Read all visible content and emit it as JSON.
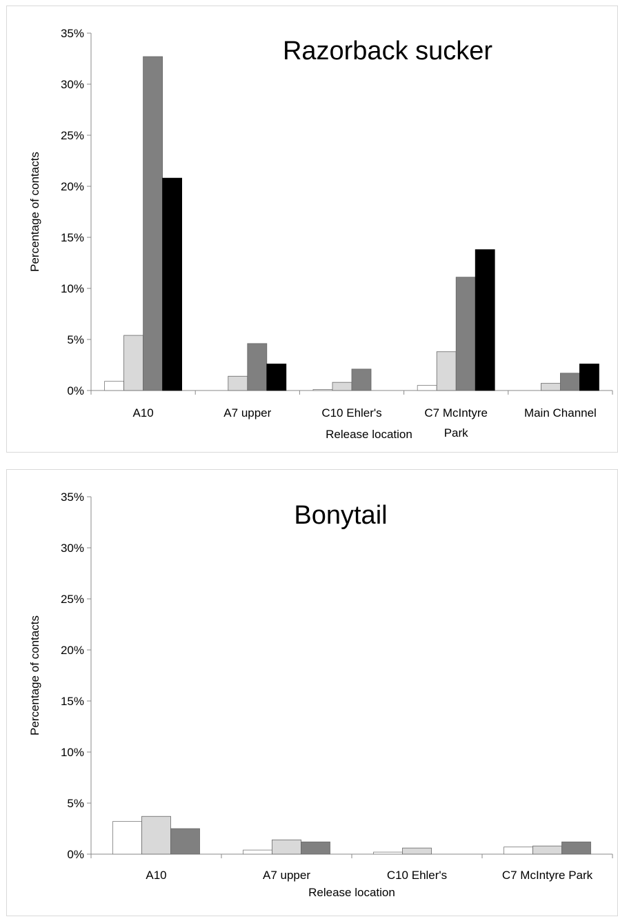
{
  "chart_data": [
    {
      "type": "bar",
      "title": "Razorback sucker",
      "xlabel": "Release location",
      "ylabel": "Percentage of contacts",
      "ylim": [
        0,
        35
      ],
      "yticks": [
        "0%",
        "5%",
        "10%",
        "15%",
        "20%",
        "25%",
        "30%",
        "35%"
      ],
      "categories": [
        "A10",
        "A7 upper",
        "C10 Ehler's",
        "C7 McIntyre Park",
        "Main Channel"
      ],
      "series": [
        {
          "values": [
            0.9,
            0.0,
            0.1,
            0.5,
            0.0
          ],
          "color": "#ffffff"
        },
        {
          "values": [
            5.4,
            1.4,
            0.8,
            3.8,
            0.7
          ],
          "color": "#d9d9d9"
        },
        {
          "values": [
            32.7,
            4.6,
            2.1,
            11.1,
            1.7
          ],
          "color": "#808080"
        },
        {
          "values": [
            20.8,
            2.6,
            0.0,
            13.8,
            2.6
          ],
          "color": "#000000"
        }
      ],
      "grid": false,
      "legend": "none"
    },
    {
      "type": "bar",
      "title": "Bonytail",
      "xlabel": "Release location",
      "ylabel": "Percentage of contacts",
      "ylim": [
        0,
        35
      ],
      "yticks": [
        "0%",
        "5%",
        "10%",
        "15%",
        "20%",
        "25%",
        "30%",
        "35%"
      ],
      "categories": [
        "A10",
        "A7 upper",
        "C10 Ehler's",
        "C7 McIntyre Park"
      ],
      "series": [
        {
          "values": [
            3.2,
            0.4,
            0.2,
            0.7
          ],
          "color": "#ffffff"
        },
        {
          "values": [
            3.7,
            1.4,
            0.6,
            0.8
          ],
          "color": "#d9d9d9"
        },
        {
          "values": [
            2.5,
            1.2,
            0.0,
            1.2
          ],
          "color": "#808080"
        }
      ],
      "grid": false,
      "legend": "none"
    }
  ]
}
